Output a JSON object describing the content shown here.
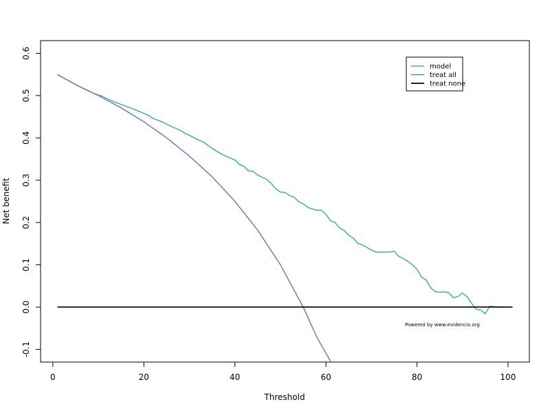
{
  "chart_data": {
    "type": "line",
    "title": "",
    "xlabel": "Threshold",
    "ylabel": "Net benefit",
    "xlim": [
      -2.7,
      104.7
    ],
    "ylim": [
      -0.13,
      0.63
    ],
    "xticks": [
      0,
      20,
      40,
      60,
      80,
      100
    ],
    "yticks": [
      -0.1,
      0.0,
      0.1,
      0.2,
      0.3,
      0.4,
      0.5,
      0.6
    ],
    "ytick_labels": [
      "-0.1",
      "0.0",
      "0.1",
      "0.2",
      "0.3",
      "0.4",
      "0.5",
      "0.6"
    ],
    "legend_position": "top-right",
    "annotation": "Powered by www.evidencio.org",
    "series": [
      {
        "name": "model",
        "color": "#3fb394",
        "x": [
          1,
          3,
          5,
          7,
          9,
          11,
          12,
          14,
          16,
          18,
          20,
          21,
          22,
          24,
          26,
          28,
          29,
          30,
          32,
          33,
          35,
          37,
          39,
          40,
          41,
          42,
          43,
          44,
          45,
          46,
          47,
          48,
          49,
          50,
          51,
          52,
          53,
          54,
          55,
          56,
          57,
          58,
          59,
          60,
          61,
          62,
          63,
          64,
          65,
          66,
          67,
          68,
          69,
          70,
          71,
          72,
          73,
          74,
          75,
          76,
          77,
          78,
          79,
          80,
          81,
          82,
          83,
          84,
          85,
          86,
          87,
          88,
          89,
          90,
          91,
          92,
          93,
          94,
          95,
          96,
          97,
          98,
          99
        ],
        "y": [
          0.55,
          0.538,
          0.526,
          0.515,
          0.505,
          0.498,
          0.492,
          0.483,
          0.475,
          0.467,
          0.458,
          0.453,
          0.446,
          0.438,
          0.427,
          0.418,
          0.411,
          0.406,
          0.395,
          0.391,
          0.375,
          0.362,
          0.352,
          0.348,
          0.337,
          0.333,
          0.322,
          0.321,
          0.312,
          0.307,
          0.302,
          0.292,
          0.28,
          0.272,
          0.271,
          0.264,
          0.26,
          0.249,
          0.244,
          0.236,
          0.232,
          0.229,
          0.229,
          0.219,
          0.204,
          0.2,
          0.187,
          0.181,
          0.17,
          0.163,
          0.151,
          0.147,
          0.141,
          0.135,
          0.13,
          0.13,
          0.13,
          0.13,
          0.132,
          0.12,
          0.115,
          0.108,
          0.1,
          0.089,
          0.071,
          0.064,
          0.046,
          0.037,
          0.035,
          0.036,
          0.034,
          0.022,
          0.025,
          0.033,
          0.025,
          0.009,
          -0.005,
          -0.007,
          -0.016,
          0.002,
          0.001,
          0,
          0
        ]
      },
      {
        "name": "treat all",
        "color": "#6b7fb4",
        "x": [
          1,
          5,
          10,
          15,
          20,
          25,
          30,
          35,
          40,
          45,
          50,
          55,
          58,
          61
        ],
        "y": [
          0.55,
          0.526,
          0.5,
          0.471,
          0.438,
          0.4,
          0.357,
          0.308,
          0.25,
          0.182,
          0.1,
          0.0,
          -0.071,
          -0.128
        ]
      },
      {
        "name": "treat none",
        "color": "#000000",
        "x": [
          1,
          101
        ],
        "y": [
          0,
          0
        ]
      }
    ]
  }
}
